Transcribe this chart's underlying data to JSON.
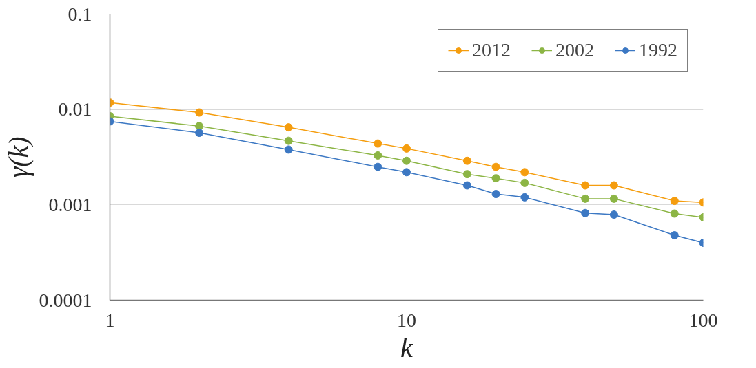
{
  "chart_data": {
    "type": "line",
    "xlabel": "k",
    "ylabel": "γ(k)",
    "log": "xy",
    "x": [
      1,
      2,
      4,
      8,
      10,
      16,
      20,
      25,
      40,
      50,
      80,
      100
    ],
    "xlim": [
      1,
      100
    ],
    "xticks": [
      1,
      10,
      100
    ],
    "ylim": [
      0.0001,
      0.1
    ],
    "yticks": [
      0.0001,
      0.001,
      0.01,
      0.1
    ],
    "grid": true,
    "legend": "top right",
    "marker": "circle",
    "line_style": "solid",
    "series": [
      {
        "name": "2012",
        "color": "#f59d0e",
        "values": [
          0.0118,
          0.0093,
          0.0065,
          0.0044,
          0.0039,
          0.0029,
          0.0025,
          0.0022,
          0.0016,
          0.0016,
          0.0011,
          0.00106
        ]
      },
      {
        "name": "2002",
        "color": "#8cb545",
        "values": [
          0.0085,
          0.0067,
          0.0047,
          0.0033,
          0.0029,
          0.0021,
          0.0019,
          0.0017,
          0.00116,
          0.00116,
          0.00081,
          0.00074
        ]
      },
      {
        "name": "1992",
        "color": "#3c78c3",
        "values": [
          0.0075,
          0.0057,
          0.0038,
          0.0025,
          0.0022,
          0.0016,
          0.0013,
          0.0012,
          0.00082,
          0.00079,
          0.00048,
          0.0004
        ]
      }
    ]
  }
}
